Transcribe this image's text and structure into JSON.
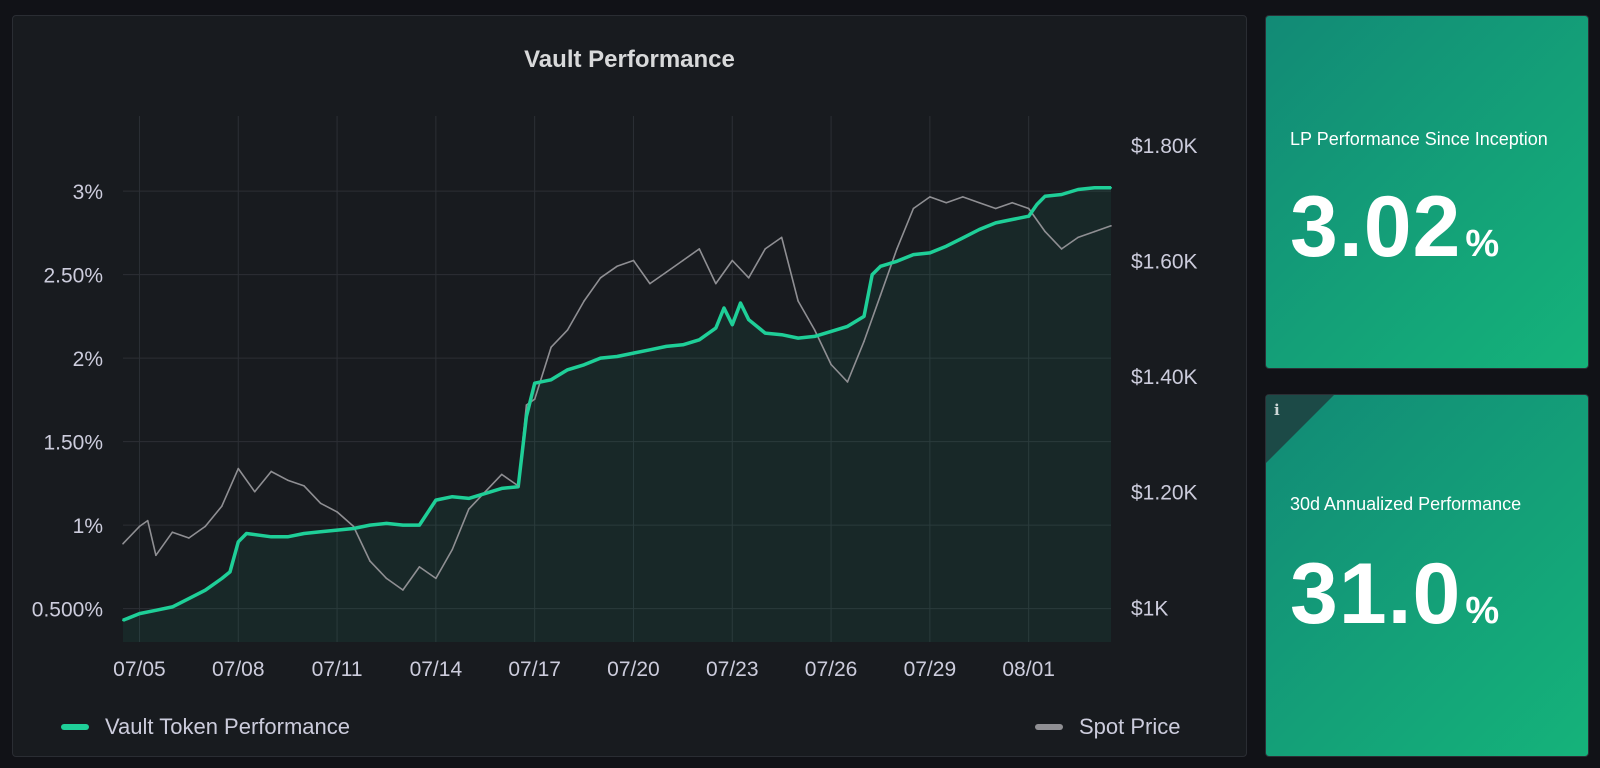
{
  "panel": {
    "title": "Vault Performance"
  },
  "colors": {
    "vault": "#1fcf98",
    "spot": "#8f8f93",
    "grid": "#2c2f35",
    "tile": "#15a07a"
  },
  "stats": [
    {
      "title": "LP Performance Since Inception",
      "value": "3.02",
      "unit": "%"
    },
    {
      "title": "30d Annualized Performance",
      "value": "31.0",
      "unit": "%",
      "icon": "info-icon"
    }
  ],
  "chart_data": {
    "type": "line",
    "title": "Vault Performance",
    "x_start": "07/04 12:00",
    "x_end": "08/03 12:00",
    "x_ticks": [
      "07/05",
      "07/08",
      "07/11",
      "07/14",
      "07/17",
      "07/20",
      "07/23",
      "07/26",
      "07/29",
      "08/01"
    ],
    "y_left": {
      "ticks": [
        "0.500%",
        "1%",
        "1.50%",
        "2%",
        "2.50%",
        "3%"
      ],
      "tick_values": [
        0.5,
        1,
        1.5,
        2,
        2.5,
        3
      ],
      "range": [
        0.3,
        3.45
      ]
    },
    "y_right": {
      "ticks": [
        "$1K",
        "$1.20K",
        "$1.40K",
        "$1.60K",
        "$1.80K"
      ],
      "tick_values": [
        1000,
        1200,
        1400,
        1600,
        1800
      ],
      "range": [
        940,
        1850
      ]
    },
    "grid": true,
    "legend": "bottom",
    "series": [
      {
        "name": "Vault Token Performance",
        "axis": "left",
        "area": true,
        "points": [
          [
            "07/04 12:00",
            0.43
          ],
          [
            "07/05 00:00",
            0.47
          ],
          [
            "07/05 12:00",
            0.49
          ],
          [
            "07/06 00:00",
            0.51
          ],
          [
            "07/06 12:00",
            0.56
          ],
          [
            "07/07 00:00",
            0.61
          ],
          [
            "07/07 12:00",
            0.68
          ],
          [
            "07/07 18:00",
            0.72
          ],
          [
            "07/08 00:00",
            0.9
          ],
          [
            "07/08 06:00",
            0.95
          ],
          [
            "07/09 00:00",
            0.93
          ],
          [
            "07/09 12:00",
            0.93
          ],
          [
            "07/10 00:00",
            0.95
          ],
          [
            "07/10 12:00",
            0.96
          ],
          [
            "07/11 00:00",
            0.97
          ],
          [
            "07/11 12:00",
            0.98
          ],
          [
            "07/12 00:00",
            1.0
          ],
          [
            "07/12 12:00",
            1.01
          ],
          [
            "07/13 00:00",
            1.0
          ],
          [
            "07/13 12:00",
            1.0
          ],
          [
            "07/14 00:00",
            1.15
          ],
          [
            "07/14 12:00",
            1.17
          ],
          [
            "07/15 00:00",
            1.16
          ],
          [
            "07/15 12:00",
            1.19
          ],
          [
            "07/16 00:00",
            1.22
          ],
          [
            "07/16 12:00",
            1.23
          ],
          [
            "07/16 18:00",
            1.65
          ],
          [
            "07/17 00:00",
            1.85
          ],
          [
            "07/17 12:00",
            1.87
          ],
          [
            "07/18 00:00",
            1.93
          ],
          [
            "07/18 12:00",
            1.96
          ],
          [
            "07/19 00:00",
            2.0
          ],
          [
            "07/19 12:00",
            2.01
          ],
          [
            "07/20 00:00",
            2.03
          ],
          [
            "07/20 12:00",
            2.05
          ],
          [
            "07/21 00:00",
            2.07
          ],
          [
            "07/21 12:00",
            2.08
          ],
          [
            "07/22 00:00",
            2.11
          ],
          [
            "07/22 12:00",
            2.18
          ],
          [
            "07/22 18:00",
            2.3
          ],
          [
            "07/23 00:00",
            2.2
          ],
          [
            "07/23 06:00",
            2.33
          ],
          [
            "07/23 12:00",
            2.23
          ],
          [
            "07/24 00:00",
            2.15
          ],
          [
            "07/24 12:00",
            2.14
          ],
          [
            "07/25 00:00",
            2.12
          ],
          [
            "07/25 12:00",
            2.13
          ],
          [
            "07/26 00:00",
            2.16
          ],
          [
            "07/26 12:00",
            2.19
          ],
          [
            "07/27 00:00",
            2.25
          ],
          [
            "07/27 06:00",
            2.5
          ],
          [
            "07/27 12:00",
            2.55
          ],
          [
            "07/28 00:00",
            2.58
          ],
          [
            "07/28 12:00",
            2.62
          ],
          [
            "07/29 00:00",
            2.63
          ],
          [
            "07/29 12:00",
            2.67
          ],
          [
            "07/30 00:00",
            2.72
          ],
          [
            "07/30 12:00",
            2.77
          ],
          [
            "07/31 00:00",
            2.81
          ],
          [
            "07/31 12:00",
            2.83
          ],
          [
            "08/01 00:00",
            2.85
          ],
          [
            "08/01 06:00",
            2.92
          ],
          [
            "08/01 12:00",
            2.97
          ],
          [
            "08/02 00:00",
            2.98
          ],
          [
            "08/02 12:00",
            3.01
          ],
          [
            "08/03 00:00",
            3.02
          ],
          [
            "08/03 12:00",
            3.02
          ]
        ]
      },
      {
        "name": "Spot Price",
        "axis": "right",
        "points": [
          [
            "07/04 12:00",
            1110
          ],
          [
            "07/05 00:00",
            1140
          ],
          [
            "07/05 06:00",
            1150
          ],
          [
            "07/05 12:00",
            1090
          ],
          [
            "07/06 00:00",
            1130
          ],
          [
            "07/06 12:00",
            1120
          ],
          [
            "07/07 00:00",
            1140
          ],
          [
            "07/07 12:00",
            1175
          ],
          [
            "07/08 00:00",
            1240
          ],
          [
            "07/08 12:00",
            1200
          ],
          [
            "07/09 00:00",
            1235
          ],
          [
            "07/09 12:00",
            1220
          ],
          [
            "07/10 00:00",
            1210
          ],
          [
            "07/10 12:00",
            1180
          ],
          [
            "07/11 00:00",
            1165
          ],
          [
            "07/11 12:00",
            1140
          ],
          [
            "07/12 00:00",
            1080
          ],
          [
            "07/12 12:00",
            1050
          ],
          [
            "07/13 00:00",
            1030
          ],
          [
            "07/13 12:00",
            1070
          ],
          [
            "07/14 00:00",
            1050
          ],
          [
            "07/14 12:00",
            1100
          ],
          [
            "07/15 00:00",
            1170
          ],
          [
            "07/15 12:00",
            1200
          ],
          [
            "07/16 00:00",
            1230
          ],
          [
            "07/16 12:00",
            1210
          ],
          [
            "07/16 18:00",
            1350
          ],
          [
            "07/17 00:00",
            1360
          ],
          [
            "07/17 12:00",
            1450
          ],
          [
            "07/18 00:00",
            1480
          ],
          [
            "07/18 12:00",
            1530
          ],
          [
            "07/19 00:00",
            1570
          ],
          [
            "07/19 12:00",
            1590
          ],
          [
            "07/20 00:00",
            1600
          ],
          [
            "07/20 12:00",
            1560
          ],
          [
            "07/21 00:00",
            1580
          ],
          [
            "07/21 12:00",
            1600
          ],
          [
            "07/22 00:00",
            1620
          ],
          [
            "07/22 12:00",
            1560
          ],
          [
            "07/23 00:00",
            1600
          ],
          [
            "07/23 12:00",
            1570
          ],
          [
            "07/24 00:00",
            1620
          ],
          [
            "07/24 12:00",
            1640
          ],
          [
            "07/25 00:00",
            1530
          ],
          [
            "07/25 12:00",
            1480
          ],
          [
            "07/26 00:00",
            1420
          ],
          [
            "07/26 12:00",
            1390
          ],
          [
            "07/27 00:00",
            1460
          ],
          [
            "07/27 12:00",
            1540
          ],
          [
            "07/28 00:00",
            1620
          ],
          [
            "07/28 12:00",
            1690
          ],
          [
            "07/29 00:00",
            1710
          ],
          [
            "07/29 12:00",
            1700
          ],
          [
            "07/30 00:00",
            1710
          ],
          [
            "07/30 12:00",
            1700
          ],
          [
            "07/31 00:00",
            1690
          ],
          [
            "07/31 12:00",
            1700
          ],
          [
            "08/01 00:00",
            1690
          ],
          [
            "08/01 12:00",
            1650
          ],
          [
            "08/02 00:00",
            1620
          ],
          [
            "08/02 12:00",
            1640
          ],
          [
            "08/03 00:00",
            1650
          ],
          [
            "08/03 12:00",
            1660
          ]
        ]
      }
    ]
  }
}
